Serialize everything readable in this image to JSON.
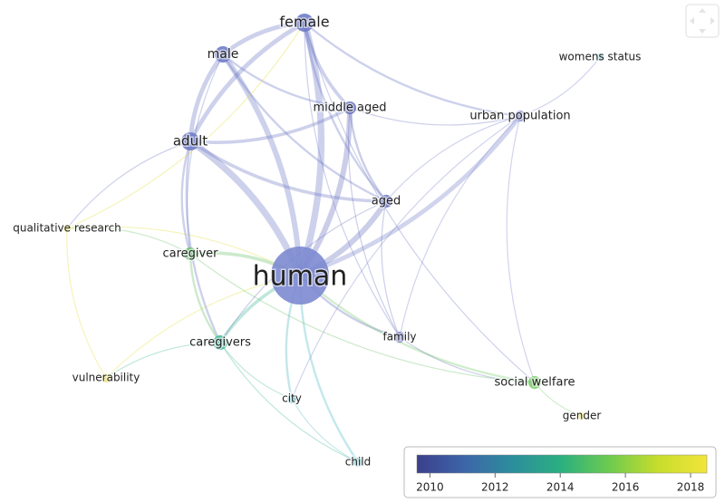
{
  "nodes": [
    {
      "label": "female",
      "color": "#6f7cc6"
    },
    {
      "label": "male",
      "color": "#6f7cc6"
    },
    {
      "label": "middle aged",
      "color": "#6c74c0"
    },
    {
      "label": "womens status",
      "color": "#45b6b2"
    },
    {
      "label": "urban population",
      "color": "#7a84cc"
    },
    {
      "label": "adult",
      "color": "#6f7cc6"
    },
    {
      "label": "aged",
      "color": "#6a72c0"
    },
    {
      "label": "qualitative research",
      "color": "#e2dc3a"
    },
    {
      "label": "caregiver",
      "color": "#6cc36c"
    },
    {
      "label": "human",
      "color": "#7c8ad0"
    },
    {
      "label": "caregivers",
      "color": "#48b99a"
    },
    {
      "label": "family",
      "color": "#6e74c2"
    },
    {
      "label": "vulnerability",
      "color": "#e6df3c"
    },
    {
      "label": "social welfare",
      "color": "#7ccd6e"
    },
    {
      "label": "city",
      "color": "#55b7c2"
    },
    {
      "label": "gender",
      "color": "#e6de3a"
    },
    {
      "label": "child",
      "color": "#52bcc8"
    }
  ],
  "colorbar": {
    "range": [
      2009.6,
      2018.5
    ],
    "ticks": [
      2010,
      2012,
      2014,
      2016,
      2018
    ],
    "colors": [
      "#3b3f8c",
      "#3d66a8",
      "#2c8e9c",
      "#2bb07f",
      "#6fcb4e",
      "#c8dd2c",
      "#f2e53a"
    ]
  }
}
